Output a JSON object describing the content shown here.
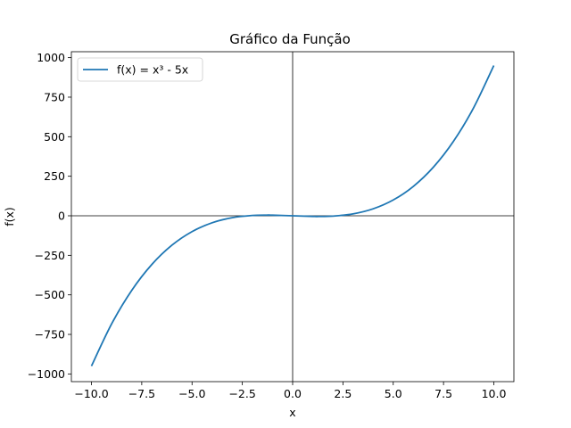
{
  "chart_data": {
    "type": "line",
    "title": "Gráfico da Função",
    "xlabel": "x",
    "ylabel": "f(x)",
    "xlim": [
      -10.0,
      10.0
    ],
    "ylim": [
      -950,
      950
    ],
    "xticks": [
      -10.0,
      -7.5,
      -5.0,
      -2.5,
      0.0,
      2.5,
      5.0,
      7.5,
      10.0
    ],
    "xtick_labels": [
      "−10.0",
      "−7.5",
      "−5.0",
      "−2.5",
      "0.0",
      "2.5",
      "5.0",
      "7.5",
      "10.0"
    ],
    "yticks": [
      -1000,
      -750,
      -500,
      -250,
      0,
      250,
      500,
      750,
      1000
    ],
    "ytick_labels": [
      "−1000",
      "−750",
      "−500",
      "−250",
      "0",
      "250",
      "500",
      "750",
      "1000"
    ],
    "grid": false,
    "reference_lines": [
      "x = 0",
      "y = 0"
    ],
    "legend": "top-left",
    "series": [
      {
        "name": "f(x) = x³ - 5x",
        "color": "#1f77b4",
        "x": [
          -10,
          -9,
          -8,
          -7,
          -6,
          -5,
          -4,
          -3,
          -2,
          -1.29,
          -1,
          0,
          1,
          1.29,
          2,
          3,
          4,
          5,
          6,
          7,
          8,
          9,
          10
        ],
        "y": [
          -950,
          -684,
          -472,
          -308,
          -186,
          -100,
          -44,
          -12,
          2,
          4.3,
          4,
          0,
          -4,
          -4.3,
          -2,
          12,
          44,
          100,
          186,
          308,
          472,
          684,
          950
        ]
      }
    ]
  }
}
